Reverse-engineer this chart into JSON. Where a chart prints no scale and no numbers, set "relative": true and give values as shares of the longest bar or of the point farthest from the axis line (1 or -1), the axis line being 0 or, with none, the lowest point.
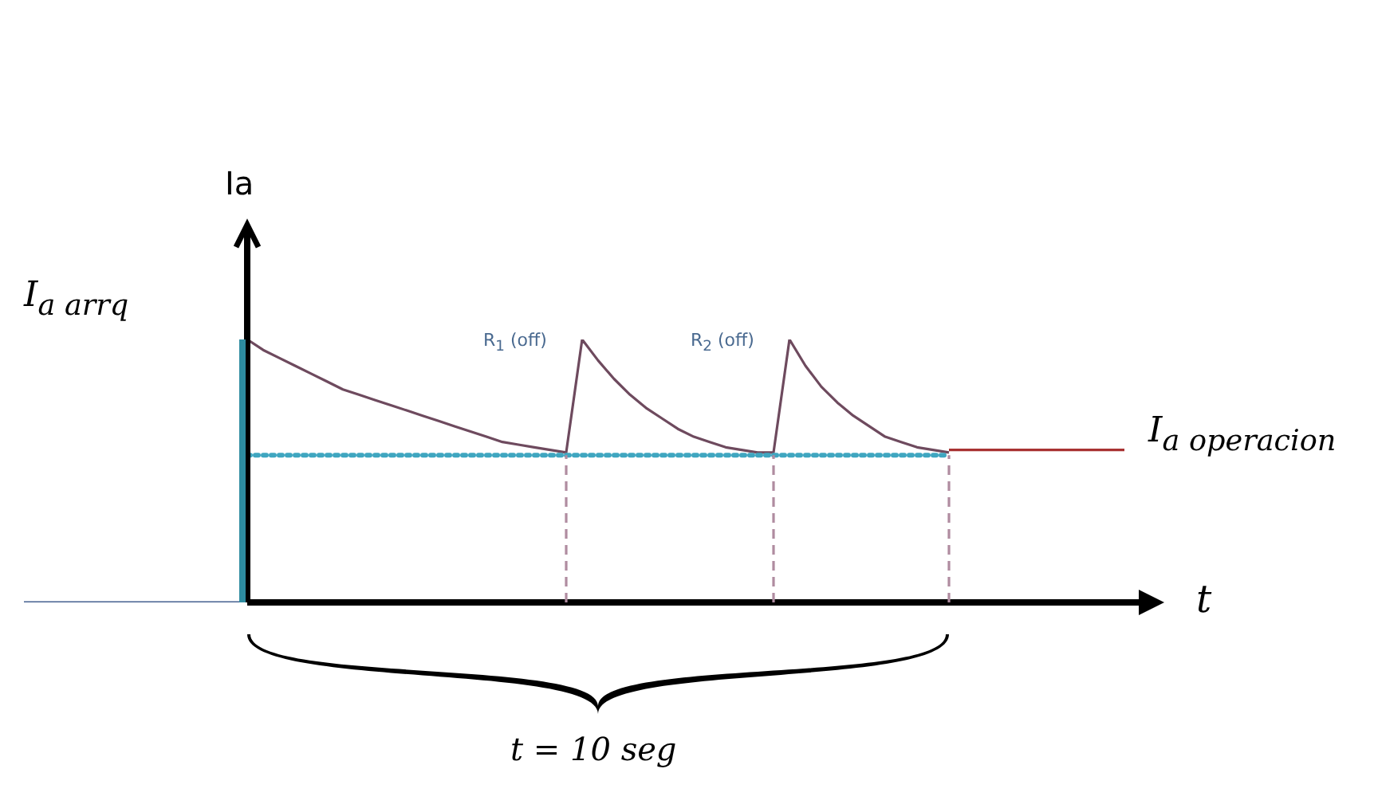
{
  "chart_data": {
    "type": "line",
    "relative": true,
    "ylabel": "Ia",
    "xlabel": "t",
    "legend": false,
    "grid": false,
    "categories": [
      null,
      null,
      null,
      null,
      null,
      null,
      null,
      null,
      null,
      null,
      null,
      null,
      null,
      null,
      null,
      null,
      null,
      null,
      null,
      null,
      null,
      null,
      null,
      null,
      null,
      null,
      null,
      null,
      null,
      null,
      null,
      null,
      null,
      null,
      null,
      null,
      null,
      null,
      null,
      null,
      null,
      null,
      null,
      null,
      null,
      null,
      null,
      null,
      null,
      null,
      null,
      null,
      null,
      null,
      null,
      null,
      null,
      null,
      null,
      null,
      null,
      null,
      null,
      null,
      null,
      null,
      null,
      null,
      null,
      null
    ],
    "annotations": [
      "I$_{a arrq}$",
      "R$_{1}$ (off)",
      "R$_{2}$ (off)",
      "I$_{a operacion}$",
      "t = 10 seg"
    ],
    "series": [
      {
        "color": "#44608f",
        "line_style": "solid",
        "values": [
          0,
          0,
          0,
          0,
          0,
          0,
          0,
          0,
          0,
          0,
          0,
          0,
          0,
          0,
          0,
          null,
          null,
          null,
          null,
          null,
          null,
          null,
          null,
          null,
          null,
          null,
          null,
          null,
          null,
          null,
          null,
          null,
          null,
          null,
          null,
          null,
          null,
          null,
          null,
          null,
          null,
          null,
          null,
          null,
          null,
          null,
          null,
          null,
          null,
          null,
          null,
          null,
          null,
          null,
          null,
          null,
          null,
          null,
          null,
          null,
          null,
          null,
          null,
          null,
          null,
          null,
          null,
          null,
          null,
          null
        ]
      },
      {
        "color": "#3fa6c0",
        "line_style": "dotted",
        "values": [
          null,
          null,
          null,
          null,
          null,
          null,
          null,
          null,
          null,
          null,
          null,
          null,
          null,
          null,
          0.56,
          0.56,
          0.56,
          0.56,
          0.56,
          0.56,
          0.56,
          0.56,
          0.56,
          0.56,
          0.56,
          0.56,
          0.56,
          0.56,
          0.56,
          0.56,
          0.56,
          0.56,
          0.56,
          0.56,
          0.56,
          0.56,
          0.56,
          0.56,
          0.56,
          0.56,
          0.56,
          0.56,
          0.56,
          0.56,
          0.56,
          0.56,
          0.56,
          0.56,
          0.56,
          0.56,
          0.56,
          0.56,
          0.56,
          0.56,
          0.56,
          0.56,
          0.56,
          0.56,
          0.56,
          null,
          null,
          null,
          null,
          null,
          null,
          null,
          null,
          null,
          null,
          null
        ]
      },
      {
        "color": "#6e4a5e",
        "line_style": "solid",
        "values": [
          null,
          null,
          null,
          null,
          null,
          null,
          null,
          null,
          null,
          null,
          null,
          null,
          null,
          null,
          1,
          0.96,
          0.93,
          0.9,
          0.87,
          0.84,
          0.81,
          0.79,
          0.77,
          0.75,
          0.73,
          0.71,
          0.69,
          0.67,
          0.65,
          0.63,
          0.61,
          0.6,
          0.59,
          0.58,
          0.57,
          1,
          0.92,
          0.85,
          0.79,
          0.74,
          0.7,
          0.66,
          0.63,
          0.61,
          0.59,
          0.58,
          0.57,
          0.57,
          1,
          0.9,
          0.82,
          0.76,
          0.71,
          0.67,
          0.63,
          0.61,
          0.59,
          0.58,
          0.57,
          null,
          null,
          null,
          null,
          null,
          null,
          null,
          null,
          null,
          null,
          null
        ]
      },
      {
        "color": "#a83232",
        "line_style": "solid",
        "values": [
          null,
          null,
          null,
          null,
          null,
          null,
          null,
          null,
          null,
          null,
          null,
          null,
          null,
          null,
          null,
          null,
          null,
          null,
          null,
          null,
          null,
          null,
          null,
          null,
          null,
          null,
          null,
          null,
          null,
          null,
          null,
          null,
          null,
          null,
          null,
          null,
          null,
          null,
          null,
          null,
          null,
          null,
          null,
          null,
          null,
          null,
          null,
          null,
          null,
          null,
          null,
          null,
          null,
          null,
          null,
          null,
          null,
          null,
          0.58,
          0.58,
          0.58,
          0.58,
          0.58,
          0.58,
          0.58,
          0.58,
          0.58,
          0.58,
          0.58,
          0.58
        ]
      }
    ]
  }
}
